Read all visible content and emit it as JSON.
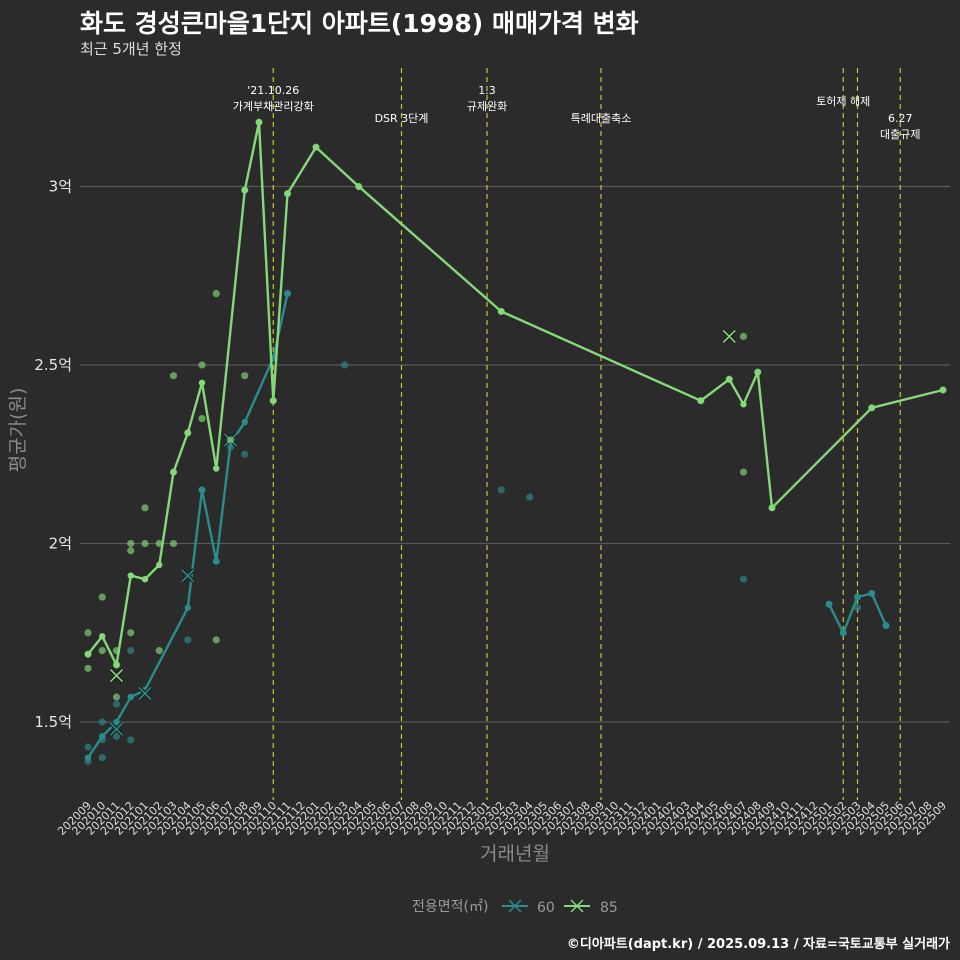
{
  "title": "화도 경성큰마을1단지 아파트(1998) 매매가격 변화",
  "subtitle": "최근 5개년 한정",
  "caption": "©디아파트(dapt.kr) / 2025.09.13 / 자료=국토교통부 실거래가",
  "chart_data": {
    "type": "line",
    "xlabel": "거래년월",
    "ylabel": "평균가(원)",
    "x_categories": [
      "202009",
      "202010",
      "202011",
      "202012",
      "202101",
      "202102",
      "202103",
      "202104",
      "202105",
      "202106",
      "202107",
      "202108",
      "202109",
      "202110",
      "202111",
      "202112",
      "202201",
      "202202",
      "202203",
      "202204",
      "202205",
      "202206",
      "202207",
      "202208",
      "202209",
      "202210",
      "202211",
      "202212",
      "202301",
      "202302",
      "202303",
      "202304",
      "202305",
      "202306",
      "202307",
      "202308",
      "202309",
      "202310",
      "202311",
      "202312",
      "202401",
      "202402",
      "202403",
      "202404",
      "202405",
      "202406",
      "202407",
      "202408",
      "202409",
      "202410",
      "202411",
      "202412",
      "202501",
      "202502",
      "202503",
      "202504",
      "202505",
      "202506",
      "202507",
      "202508",
      "202509"
    ],
    "yticks": [
      {
        "value": 1.5,
        "label": "1.5억"
      },
      {
        "value": 2.0,
        "label": "2억"
      },
      {
        "value": 2.5,
        "label": "2.5억"
      },
      {
        "value": 3.0,
        "label": "3억"
      }
    ],
    "ylim": [
      1.28,
      3.3
    ],
    "y_unit": "억원",
    "grid": true,
    "legend": {
      "title": "전용면적(㎡)",
      "position": "bottom"
    },
    "series": [
      {
        "name": "60",
        "color": "#2a8c8c",
        "line_segments": [
          [
            [
              0,
              1.4
            ],
            [
              1,
              1.46
            ],
            [
              2,
              1.5
            ],
            [
              3,
              1.57
            ],
            [
              4,
              1.59
            ],
            [
              7,
              1.82
            ],
            [
              8,
              2.15
            ],
            [
              9,
              1.95
            ],
            [
              10,
              2.28
            ],
            [
              11,
              2.34
            ],
            [
              13,
              2.52
            ],
            [
              14,
              2.7
            ]
          ],
          [
            [
              52,
              1.83
            ],
            [
              53,
              1.75
            ],
            [
              54,
              1.85
            ],
            [
              55,
              1.86
            ],
            [
              56,
              1.77
            ]
          ]
        ],
        "points": [
          [
            0,
            1.39
          ],
          [
            0,
            1.43
          ],
          [
            1,
            1.4
          ],
          [
            1,
            1.45
          ],
          [
            1,
            1.5
          ],
          [
            2,
            1.46
          ],
          [
            2,
            1.48
          ],
          [
            2,
            1.49
          ],
          [
            2,
            1.55
          ],
          [
            3,
            1.45
          ],
          [
            3,
            1.7
          ],
          [
            4,
            1.58
          ],
          [
            7,
            1.73
          ],
          [
            7,
            1.91
          ],
          [
            8,
            2.15
          ],
          [
            9,
            1.95
          ],
          [
            10,
            2.27
          ],
          [
            11,
            2.25
          ],
          [
            13,
            2.52
          ],
          [
            14,
            2.7
          ],
          [
            18,
            2.5
          ],
          [
            29,
            2.15
          ],
          [
            31,
            2.13
          ],
          [
            46,
            1.9
          ],
          [
            52,
            1.83
          ],
          [
            53,
            1.75
          ],
          [
            54,
            1.82
          ],
          [
            54,
            1.85
          ],
          [
            55,
            1.86
          ],
          [
            56,
            1.77
          ]
        ],
        "markers_x": [
          [
            2,
            1.48
          ],
          [
            4,
            1.58
          ],
          [
            7,
            1.91
          ],
          [
            10,
            2.29
          ]
        ]
      },
      {
        "name": "85",
        "color": "#86d97a",
        "line_segments": [
          [
            [
              0,
              1.69
            ],
            [
              1,
              1.74
            ],
            [
              2,
              1.66
            ],
            [
              3,
              1.91
            ],
            [
              4,
              1.9
            ],
            [
              5,
              1.94
            ],
            [
              6,
              2.2
            ],
            [
              7,
              2.31
            ],
            [
              8,
              2.45
            ],
            [
              9,
              2.21
            ],
            [
              11,
              2.99
            ],
            [
              12,
              3.18
            ],
            [
              13,
              2.4
            ],
            [
              14,
              2.98
            ],
            [
              16,
              3.11
            ],
            [
              19,
              3.0
            ],
            [
              29,
              2.65
            ],
            [
              43,
              2.4
            ],
            [
              45,
              2.46
            ],
            [
              46,
              2.39
            ],
            [
              47,
              2.48
            ],
            [
              48,
              2.1
            ],
            [
              55,
              2.38
            ],
            [
              60,
              2.43
            ]
          ]
        ],
        "points": [
          [
            0,
            1.65
          ],
          [
            0,
            1.69
          ],
          [
            0,
            1.75
          ],
          [
            1,
            1.7
          ],
          [
            1,
            1.85
          ],
          [
            2,
            1.57
          ],
          [
            2,
            1.66
          ],
          [
            2,
            1.7
          ],
          [
            3,
            1.75
          ],
          [
            3,
            1.98
          ],
          [
            3,
            2.0
          ],
          [
            4,
            2.0
          ],
          [
            4,
            2.1
          ],
          [
            5,
            1.7
          ],
          [
            5,
            2.0
          ],
          [
            6,
            2.0
          ],
          [
            6,
            2.2
          ],
          [
            6,
            2.47
          ],
          [
            7,
            2.31
          ],
          [
            8,
            2.35
          ],
          [
            8,
            2.5
          ],
          [
            9,
            2.7
          ],
          [
            9,
            1.73
          ],
          [
            10,
            2.29
          ],
          [
            11,
            2.47
          ],
          [
            11,
            2.99
          ],
          [
            12,
            3.18
          ],
          [
            13,
            2.4
          ],
          [
            14,
            2.98
          ],
          [
            16,
            3.11
          ],
          [
            19,
            3.0
          ],
          [
            29,
            2.65
          ],
          [
            43,
            2.4
          ],
          [
            45,
            2.46
          ],
          [
            46,
            2.58
          ],
          [
            46,
            2.2
          ],
          [
            47,
            2.48
          ],
          [
            48,
            2.1
          ],
          [
            55,
            2.38
          ],
          [
            60,
            2.43
          ]
        ],
        "markers_x": [
          [
            2,
            1.63
          ],
          [
            45,
            2.58
          ]
        ]
      }
    ],
    "annotations": [
      {
        "x": 13,
        "lines": [
          "'21.10.26",
          "가계부채관리강화"
        ],
        "row": 0
      },
      {
        "x": 22,
        "lines": [
          "DSR 3단계"
        ],
        "row": 1
      },
      {
        "x": 28,
        "lines": [
          "1.3",
          "규제완화"
        ],
        "row": 0
      },
      {
        "x": 36,
        "lines": [
          "특례대출축소"
        ],
        "row": 1
      },
      {
        "x": 53,
        "lines": [
          "토허제 해제"
        ],
        "row": 0.4
      },
      {
        "x": 54,
        "lines": [],
        "row": 0
      },
      {
        "x": 57,
        "lines": [
          "6.27",
          "대출규제"
        ],
        "row": 1
      }
    ]
  }
}
